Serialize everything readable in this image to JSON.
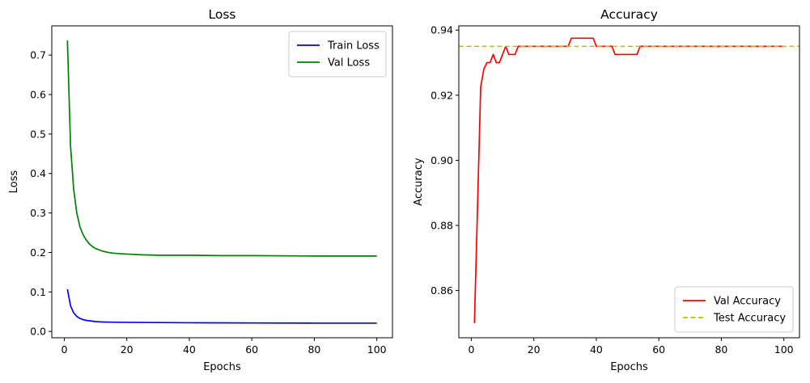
{
  "chart_data": [
    {
      "type": "line",
      "title": "Loss",
      "xlabel": "Epochs",
      "ylabel": "Loss",
      "xlim": [
        -4,
        105
      ],
      "ylim": [
        -0.016,
        0.774
      ],
      "xticks": [
        0,
        20,
        40,
        60,
        80,
        100
      ],
      "yticks": [
        0.0,
        0.1,
        0.2,
        0.3,
        0.4,
        0.5,
        0.6,
        0.7
      ],
      "ytick_labels": [
        "0.0",
        "0.1",
        "0.2",
        "0.3",
        "0.4",
        "0.5",
        "0.6",
        "0.7"
      ],
      "grid": false,
      "legend_position": "top-right",
      "series": [
        {
          "name": "Train Loss",
          "color": "#0000ff",
          "style": "solid",
          "points": [
            [
              1,
              0.107
            ],
            [
              2,
              0.065
            ],
            [
              3,
              0.047
            ],
            [
              4,
              0.038
            ],
            [
              5,
              0.033
            ],
            [
              6,
              0.03
            ],
            [
              7,
              0.028
            ],
            [
              8,
              0.027
            ],
            [
              10,
              0.025
            ],
            [
              12,
              0.024
            ],
            [
              15,
              0.0235
            ],
            [
              20,
              0.023
            ],
            [
              30,
              0.0225
            ],
            [
              40,
              0.022
            ],
            [
              60,
              0.0215
            ],
            [
              80,
              0.021
            ],
            [
              100,
              0.021
            ]
          ]
        },
        {
          "name": "Val Loss",
          "color": "#008000",
          "style": "solid",
          "points": [
            [
              1,
              0.737
            ],
            [
              2,
              0.47
            ],
            [
              3,
              0.36
            ],
            [
              4,
              0.3
            ],
            [
              5,
              0.265
            ],
            [
              6,
              0.245
            ],
            [
              7,
              0.232
            ],
            [
              8,
              0.222
            ],
            [
              9,
              0.215
            ],
            [
              10,
              0.21
            ],
            [
              12,
              0.204
            ],
            [
              14,
              0.2
            ],
            [
              16,
              0.198
            ],
            [
              20,
              0.196
            ],
            [
              25,
              0.194
            ],
            [
              30,
              0.193
            ],
            [
              40,
              0.193
            ],
            [
              50,
              0.192
            ],
            [
              60,
              0.192
            ],
            [
              80,
              0.191
            ],
            [
              100,
              0.191
            ]
          ]
        }
      ]
    },
    {
      "type": "line",
      "title": "Accuracy",
      "xlabel": "Epochs",
      "ylabel": "Accuracy",
      "xlim": [
        -4,
        105
      ],
      "ylim": [
        0.8455,
        0.9413
      ],
      "xticks": [
        0,
        20,
        40,
        60,
        80,
        100
      ],
      "yticks": [
        0.86,
        0.88,
        0.9,
        0.92,
        0.94
      ],
      "ytick_labels": [
        "0.86",
        "0.88",
        "0.90",
        "0.92",
        "0.94"
      ],
      "grid": false,
      "legend_position": "bottom-right",
      "series": [
        {
          "name": "Val Accuracy",
          "color": "#ff0000",
          "style": "solid",
          "points": [
            [
              1,
              0.85
            ],
            [
              2,
              0.886
            ],
            [
              3,
              0.9225
            ],
            [
              4,
              0.928
            ],
            [
              5,
              0.93
            ],
            [
              6,
              0.93
            ],
            [
              7,
              0.9325
            ],
            [
              8,
              0.93
            ],
            [
              9,
              0.93
            ],
            [
              10,
              0.9325
            ],
            [
              11,
              0.935
            ],
            [
              12,
              0.9325
            ],
            [
              13,
              0.9325
            ],
            [
              14,
              0.9325
            ],
            [
              15,
              0.935
            ],
            [
              16,
              0.935
            ],
            [
              31,
              0.935
            ],
            [
              32,
              0.9375
            ],
            [
              39,
              0.9375
            ],
            [
              40,
              0.935
            ],
            [
              45,
              0.935
            ],
            [
              46,
              0.9325
            ],
            [
              53,
              0.9325
            ],
            [
              54,
              0.935
            ],
            [
              100,
              0.935
            ]
          ]
        },
        {
          "name": "Test Accuracy",
          "color": "#bfbf00",
          "style": "dashed",
          "hline": 0.935
        }
      ]
    }
  ]
}
